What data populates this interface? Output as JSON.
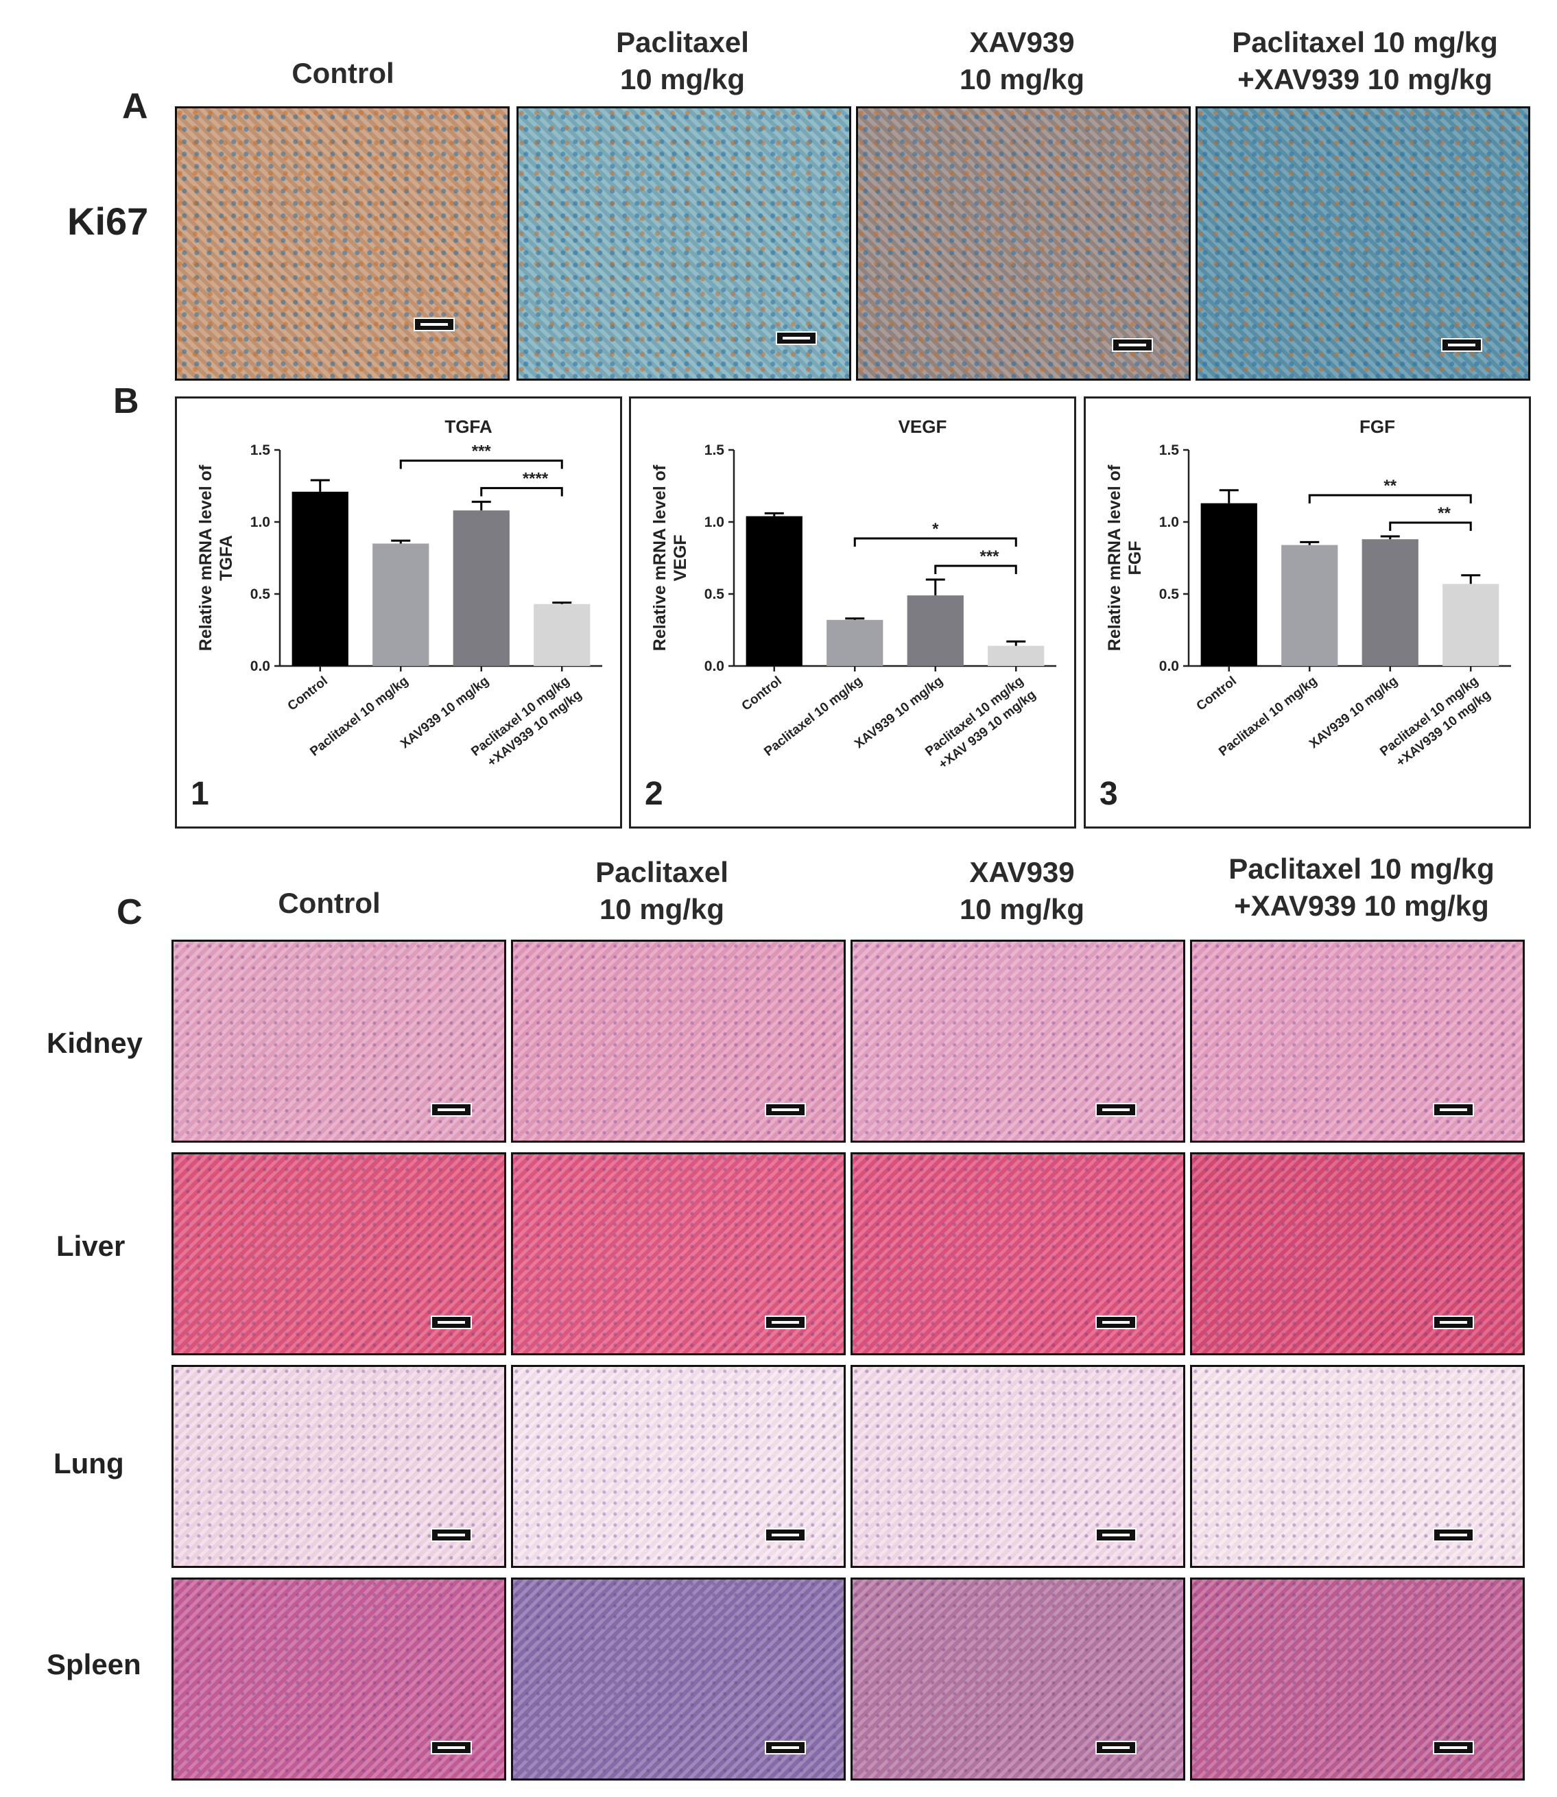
{
  "groups": [
    "Control",
    "Paclitaxel\n10 mg/kg",
    "XAV939\n10 mg/kg",
    "Paclitaxel 10 mg/kg\n+XAV939 10 mg/kg"
  ],
  "panel_a": {
    "letter": "A",
    "stain_label": "Ki67",
    "image_colors": [
      "#c89a78",
      "#7fb0bf",
      "#9a8a86",
      "#5e95ad"
    ]
  },
  "panel_b": {
    "letter": "B"
  },
  "panel_c": {
    "letter": "C",
    "organs": [
      "Kidney",
      "Liver",
      "Lung",
      "Spleen"
    ],
    "image_colors": [
      [
        "#e6a2c2",
        "#e59bbd",
        "#e7a3c4",
        "#e69ec0"
      ],
      [
        "#e0567e",
        "#e35a84",
        "#e0537e",
        "#d94a74"
      ],
      [
        "#f3d8e7",
        "#f7e3ee",
        "#f4dbe9",
        "#f7e4ee"
      ],
      [
        "#c85f9a",
        "#8a6fab",
        "#b778a5",
        "#c05f94"
      ]
    ]
  },
  "chart_data": [
    {
      "type": "bar",
      "panel_number": "1",
      "title": "TGFA",
      "ylabel": "Relative mRNA level of\nTGFA",
      "categories": [
        "Control",
        "Paclitaxel 10 mg/kg",
        "XAV939 10 mg/kg",
        "Paclitaxel 10 mg/kg\n+XAV939 10 mg/kg"
      ],
      "values": [
        1.21,
        0.85,
        1.08,
        0.43
      ],
      "errors": [
        0.08,
        0.02,
        0.06,
        0.01
      ],
      "bar_colors": [
        "#000000",
        "#a1a1a8",
        "#7c7c82",
        "#d6d6d6"
      ],
      "ylim": [
        0,
        1.5
      ],
      "yticks": [
        "0.0",
        "0.5",
        "1.0",
        "1.5"
      ],
      "significance": [
        {
          "from": 1,
          "to": 3,
          "label": "***"
        },
        {
          "from": 2,
          "to": 3,
          "label": "****"
        }
      ]
    },
    {
      "type": "bar",
      "panel_number": "2",
      "title": "VEGF",
      "ylabel": "Relative mRNA level of\nVEGF",
      "categories": [
        "Control",
        "Paclitaxel 10 mg/kg",
        "XAV939 10 mg/kg",
        "Paclitaxel 10 mg/kg\n+XAV 939 10 mg/kg"
      ],
      "values": [
        1.04,
        0.32,
        0.49,
        0.14
      ],
      "errors": [
        0.02,
        0.01,
        0.11,
        0.03
      ],
      "bar_colors": [
        "#000000",
        "#a1a1a8",
        "#7c7c82",
        "#d6d6d6"
      ],
      "ylim": [
        0,
        1.5
      ],
      "yticks": [
        "0.0",
        "0.5",
        "1.0",
        "1.5"
      ],
      "significance": [
        {
          "from": 1,
          "to": 3,
          "label": "*"
        },
        {
          "from": 2,
          "to": 3,
          "label": "***"
        }
      ]
    },
    {
      "type": "bar",
      "panel_number": "3",
      "title": "FGF",
      "ylabel": "Relative mRNA level of\nFGF",
      "categories": [
        "Control",
        "Paclitaxel 10 mg/kg",
        "XAV939 10 mg/kg",
        "Paclitaxel 10 mg/kg\n+XAV939 10 mg/kg"
      ],
      "values": [
        1.13,
        0.84,
        0.88,
        0.57
      ],
      "errors": [
        0.09,
        0.02,
        0.02,
        0.06
      ],
      "bar_colors": [
        "#000000",
        "#a1a1a8",
        "#7c7c82",
        "#d6d6d6"
      ],
      "ylim": [
        0,
        1.5
      ],
      "yticks": [
        "0.0",
        "0.5",
        "1.0",
        "1.5"
      ],
      "significance": [
        {
          "from": 1,
          "to": 3,
          "label": "**"
        },
        {
          "from": 2,
          "to": 3,
          "label": "**"
        }
      ]
    }
  ]
}
